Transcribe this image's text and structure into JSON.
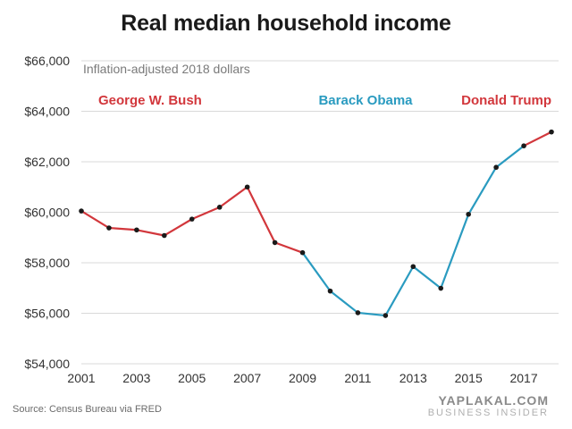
{
  "chart_data": {
    "type": "line",
    "title": "Real median household income",
    "subtitle": "Inflation-adjusted 2018 dollars",
    "xlabel": "",
    "ylabel": "",
    "x": [
      2001,
      2002,
      2003,
      2004,
      2005,
      2006,
      2007,
      2008,
      2009,
      2010,
      2011,
      2012,
      2013,
      2014,
      2015,
      2016,
      2017,
      2018
    ],
    "values": [
      60050,
      59380,
      59300,
      59080,
      59730,
      60200,
      61000,
      58800,
      58400,
      56880,
      56020,
      55910,
      57850,
      56990,
      59920,
      61780,
      62630,
      63180
    ],
    "ylim": [
      54000,
      66000
    ],
    "xlim": [
      2001,
      2018
    ],
    "y_ticks": [
      54000,
      56000,
      58000,
      60000,
      62000,
      64000,
      66000
    ],
    "y_tick_labels": [
      "$54,000",
      "$56,000",
      "$58,000",
      "$60,000",
      "$62,000",
      "$64,000",
      "$66,000"
    ],
    "x_ticks": [
      2001,
      2003,
      2005,
      2007,
      2009,
      2011,
      2013,
      2015,
      2017
    ],
    "x_tick_labels": [
      "2001",
      "2003",
      "2005",
      "2007",
      "2009",
      "2011",
      "2013",
      "2015",
      "2017"
    ],
    "grid": true,
    "segments": [
      {
        "label": "George W. Bush",
        "from": 2001,
        "to": 2009,
        "color": "#d2373c"
      },
      {
        "label": "Barack Obama",
        "from": 2009,
        "to": 2017,
        "color": "#2a9bc0"
      },
      {
        "label": "Donald Trump",
        "from": 2017,
        "to": 2018,
        "color": "#d2373c"
      }
    ]
  },
  "source": "Source: Census Bureau via FRED",
  "watermark": {
    "main": "YAPLAKAL.COM",
    "sub": "BUSINESS INSIDER"
  },
  "colors": {
    "grid": "#d9d9d9",
    "axis_text": "#333333",
    "subtitle_text": "#7a7a7a",
    "point": "#1a1a1a"
  }
}
